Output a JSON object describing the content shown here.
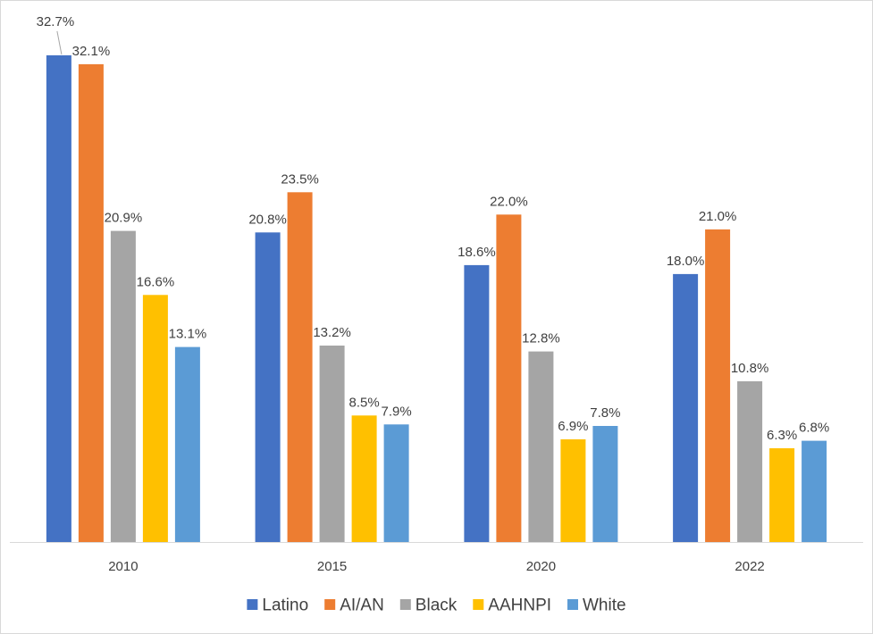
{
  "chart_data": {
    "type": "bar",
    "title": "",
    "xlabel": "",
    "ylabel": "",
    "categories": [
      "2010",
      "2015",
      "2020",
      "2022"
    ],
    "series": [
      {
        "name": "Latino",
        "values": [
          32.7,
          20.8,
          18.6,
          18.0
        ],
        "labels": [
          "32.7%",
          "20.8%",
          "18.6%",
          "18.0%"
        ],
        "color": "#4472C4"
      },
      {
        "name": "AI/AN",
        "values": [
          32.1,
          23.5,
          22.0,
          21.0
        ],
        "labels": [
          "32.1%",
          "23.5%",
          "22.0%",
          "21.0%"
        ],
        "color": "#ED7D31"
      },
      {
        "name": "Black",
        "values": [
          20.9,
          13.2,
          12.8,
          10.8
        ],
        "labels": [
          "20.9%",
          "13.2%",
          "12.8%",
          "10.8%"
        ],
        "color": "#A5A5A5"
      },
      {
        "name": "AAHNPI",
        "values": [
          16.6,
          8.5,
          6.9,
          6.3
        ],
        "labels": [
          "16.6%",
          "8.5%",
          "6.9%",
          "6.3%"
        ],
        "color": "#FFC000"
      },
      {
        "name": "White",
        "values": [
          13.1,
          7.9,
          7.8,
          6.8
        ],
        "labels": [
          "13.1%",
          "7.9%",
          "7.8%",
          "6.8%"
        ],
        "color": "#5B9BD5"
      }
    ],
    "ylim": [
      0,
      36
    ],
    "grid": false,
    "legend_position": "bottom",
    "axis_color": "#d9d9d9"
  }
}
